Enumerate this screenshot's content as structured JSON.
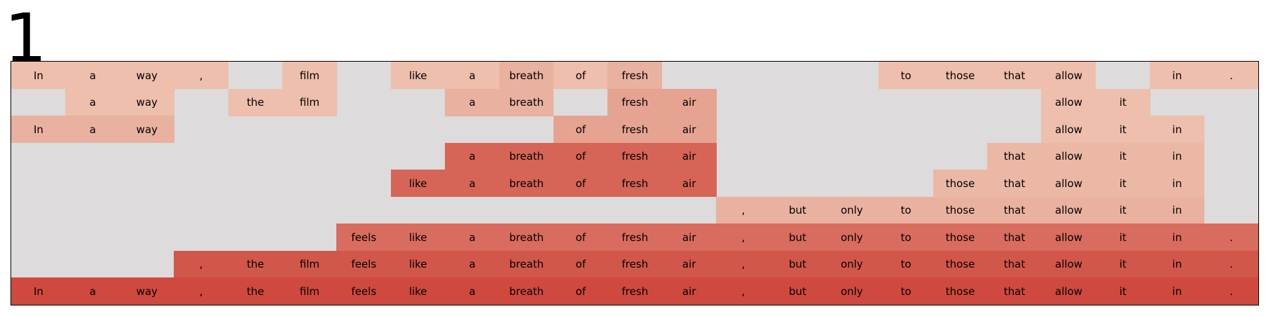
{
  "figure_label": "1",
  "chart_data": {
    "type": "heatmap",
    "tokens": [
      "In",
      "a",
      "way",
      ",",
      "the",
      "film",
      "feels",
      "like",
      "a",
      "breath",
      "of",
      "fresh",
      "air",
      ",",
      "but",
      "only",
      "to",
      "those",
      "that",
      "allow",
      "it",
      "in",
      "."
    ],
    "base_color": "#dddbdc",
    "rows": [
      {
        "intensity": [
          0.1,
          0.1,
          0.1,
          0.1,
          null,
          0.1,
          null,
          0.1,
          0.1,
          0.2,
          0.1,
          0.2,
          null,
          null,
          null,
          null,
          0.1,
          0.1,
          0.1,
          0.1,
          null,
          0.1,
          0.1
        ]
      },
      {
        "intensity": [
          null,
          0.1,
          0.1,
          null,
          0.1,
          0.1,
          null,
          null,
          0.2,
          0.2,
          null,
          0.3,
          0.3,
          null,
          null,
          null,
          null,
          null,
          null,
          0.1,
          0.1,
          null,
          null
        ]
      },
      {
        "intensity": [
          0.2,
          0.2,
          0.2,
          null,
          null,
          null,
          null,
          null,
          null,
          null,
          0.3,
          0.3,
          0.3,
          null,
          null,
          null,
          null,
          null,
          null,
          0.1,
          0.1,
          0.1,
          null
        ]
      },
      {
        "intensity": [
          null,
          null,
          null,
          null,
          null,
          null,
          null,
          null,
          0.75,
          0.75,
          0.75,
          0.75,
          0.75,
          null,
          null,
          null,
          null,
          null,
          0.15,
          0.15,
          0.15,
          0.15,
          null
        ]
      },
      {
        "intensity": [
          null,
          null,
          null,
          null,
          null,
          null,
          null,
          0.75,
          0.75,
          0.75,
          0.75,
          0.75,
          0.75,
          null,
          null,
          null,
          null,
          0.15,
          0.15,
          0.15,
          0.15,
          0.15,
          null
        ]
      },
      {
        "intensity": [
          null,
          null,
          null,
          null,
          null,
          null,
          null,
          null,
          null,
          null,
          null,
          null,
          null,
          0.2,
          0.2,
          0.2,
          0.2,
          0.2,
          0.2,
          0.2,
          0.2,
          0.2,
          null
        ]
      },
      {
        "intensity": [
          null,
          null,
          null,
          null,
          null,
          null,
          0.7,
          0.7,
          0.7,
          0.7,
          0.7,
          0.7,
          0.7,
          0.7,
          0.7,
          0.7,
          0.7,
          0.7,
          0.7,
          0.7,
          0.7,
          0.7,
          0.7
        ]
      },
      {
        "intensity": [
          null,
          null,
          null,
          0.85,
          0.85,
          0.85,
          0.85,
          0.85,
          0.85,
          0.85,
          0.85,
          0.85,
          0.85,
          0.85,
          0.85,
          0.85,
          0.85,
          0.85,
          0.85,
          0.85,
          0.85,
          0.85,
          0.85
        ]
      },
      {
        "intensity": [
          0.95,
          0.95,
          0.95,
          0.95,
          0.95,
          0.95,
          0.95,
          0.95,
          0.95,
          0.95,
          0.95,
          0.95,
          0.95,
          0.95,
          0.95,
          0.95,
          0.95,
          0.95,
          0.95,
          0.95,
          0.95,
          0.95,
          0.95
        ]
      }
    ]
  }
}
